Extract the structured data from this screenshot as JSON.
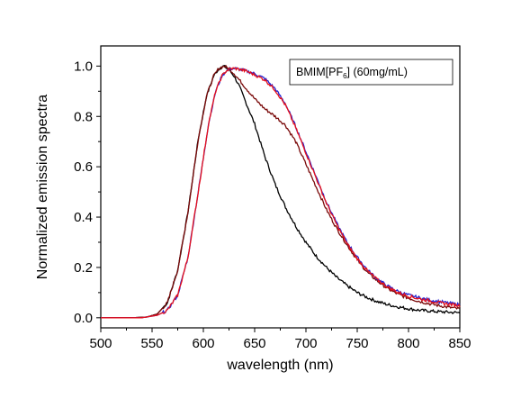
{
  "chart_data": {
    "type": "line",
    "xlabel": "wavelength (nm)",
    "ylabel": "Normalized emission spectra",
    "xlim": [
      500,
      850
    ],
    "ylim": [
      -0.04,
      1.08
    ],
    "x_ticks": [
      500,
      550,
      600,
      650,
      700,
      750,
      800,
      850
    ],
    "y_ticks": [
      0.0,
      0.2,
      0.4,
      0.6,
      0.8,
      1.0
    ],
    "x_tick_labels": [
      "500",
      "550",
      "600",
      "650",
      "700",
      "750",
      "800",
      "850"
    ],
    "y_tick_labels": [
      "0.0",
      "0.2",
      "0.4",
      "0.6",
      "0.8",
      "1.0"
    ],
    "grid": false,
    "legend": {
      "placement": "top-right",
      "text_main": "BMIM[PF",
      "text_sub": "6",
      "text_rest": "] (60mg/mL)"
    },
    "series": [
      {
        "color": "#000000",
        "x": [
          500,
          530,
          545,
          555,
          565,
          575,
          585,
          595,
          603,
          610,
          615,
          620,
          625,
          630,
          635,
          640,
          650,
          660,
          670,
          680,
          690,
          700,
          710,
          720,
          730,
          740,
          750,
          760,
          770,
          780,
          790,
          800,
          810,
          820,
          830,
          840,
          850
        ],
        "y": [
          0.0,
          0.0,
          0.003,
          0.015,
          0.06,
          0.19,
          0.42,
          0.71,
          0.88,
          0.96,
          0.99,
          1.0,
          0.985,
          0.96,
          0.92,
          0.87,
          0.77,
          0.64,
          0.53,
          0.44,
          0.365,
          0.3,
          0.245,
          0.2,
          0.16,
          0.128,
          0.1,
          0.08,
          0.064,
          0.052,
          0.043,
          0.036,
          0.03,
          0.027,
          0.024,
          0.022,
          0.02
        ]
      },
      {
        "color": "#7a0a0a",
        "x": [
          500,
          530,
          545,
          555,
          565,
          575,
          585,
          595,
          603,
          610,
          615,
          620,
          625,
          630,
          640,
          650,
          660,
          670,
          680,
          690,
          700,
          710,
          720,
          730,
          740,
          750,
          760,
          770,
          780,
          790,
          800,
          810,
          820,
          830,
          840,
          850
        ],
        "y": [
          0.0,
          0.0,
          0.003,
          0.015,
          0.06,
          0.19,
          0.42,
          0.71,
          0.88,
          0.96,
          0.99,
          1.0,
          0.99,
          0.97,
          0.92,
          0.87,
          0.83,
          0.8,
          0.765,
          0.7,
          0.61,
          0.52,
          0.43,
          0.355,
          0.29,
          0.23,
          0.18,
          0.145,
          0.115,
          0.093,
          0.078,
          0.066,
          0.056,
          0.048,
          0.041,
          0.035
        ]
      },
      {
        "color": "#2020d0",
        "x": [
          500,
          540,
          555,
          565,
          575,
          585,
          595,
          605,
          612,
          618,
          622,
          627,
          632,
          637,
          642,
          650,
          660,
          670,
          680,
          690,
          700,
          710,
          720,
          730,
          740,
          750,
          760,
          770,
          780,
          790,
          800,
          810,
          820,
          830,
          840,
          850
        ],
        "y": [
          0.0,
          0.0,
          0.01,
          0.03,
          0.09,
          0.24,
          0.5,
          0.77,
          0.9,
          0.96,
          0.98,
          0.99,
          0.99,
          0.985,
          0.98,
          0.97,
          0.95,
          0.91,
          0.85,
          0.76,
          0.66,
          0.56,
          0.46,
          0.375,
          0.3,
          0.24,
          0.19,
          0.153,
          0.125,
          0.104,
          0.09,
          0.08,
          0.071,
          0.064,
          0.058,
          0.052
        ]
      },
      {
        "color": "#e8101a",
        "x": [
          500,
          540,
          555,
          565,
          575,
          585,
          595,
          605,
          612,
          618,
          622,
          627,
          632,
          637,
          642,
          650,
          660,
          670,
          680,
          690,
          700,
          710,
          720,
          730,
          740,
          750,
          760,
          770,
          780,
          790,
          800,
          810,
          820,
          830,
          840,
          850
        ],
        "y": [
          0.0,
          0.0,
          0.01,
          0.03,
          0.09,
          0.24,
          0.5,
          0.77,
          0.9,
          0.96,
          0.98,
          0.99,
          0.99,
          0.985,
          0.98,
          0.965,
          0.945,
          0.905,
          0.845,
          0.755,
          0.655,
          0.555,
          0.455,
          0.37,
          0.295,
          0.235,
          0.186,
          0.15,
          0.122,
          0.1,
          0.086,
          0.076,
          0.068,
          0.06,
          0.054,
          0.048
        ]
      }
    ]
  }
}
